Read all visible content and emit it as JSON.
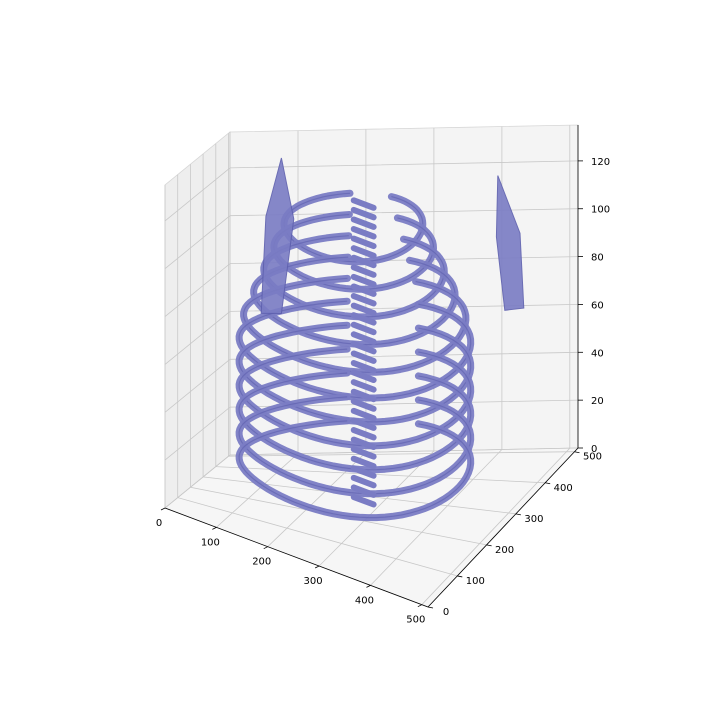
{
  "chart_data": {
    "type": "surface-3d",
    "title": "",
    "xlabel": "",
    "ylabel": "",
    "zlabel": "",
    "grid": true,
    "legend": "none",
    "xlim": [
      0,
      512
    ],
    "ylim": [
      0,
      512
    ],
    "zlim": [
      0,
      135
    ],
    "x_ticks": [
      0,
      100,
      200,
      300,
      400,
      500
    ],
    "y_ticks": [
      0,
      100,
      200,
      300,
      400,
      500
    ],
    "z_ticks": [
      0,
      20,
      40,
      60,
      80,
      100,
      120
    ],
    "x_tick_labels": [
      "0",
      "100",
      "200",
      "300",
      "400",
      "500"
    ],
    "y_tick_labels": [
      "0",
      "100",
      "200",
      "300",
      "400",
      "500"
    ],
    "z_tick_labels": [
      "0",
      "20",
      "40",
      "60",
      "80",
      "100",
      "120"
    ],
    "series": [
      {
        "color": "#7a7cc4",
        "edge_color": "#5d5fae"
      }
    ],
    "pane_color": "#f2f2f2",
    "grid_color": "#c8c8c8"
  }
}
